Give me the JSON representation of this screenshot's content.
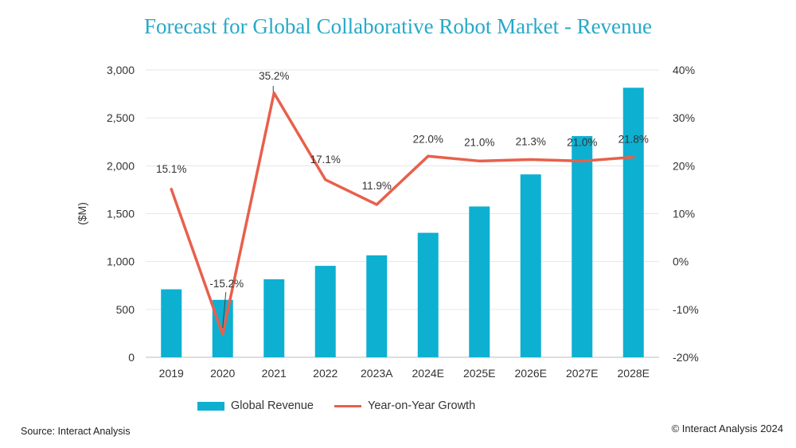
{
  "title": "Forecast for Global Collaborative Robot Market - Revenue",
  "source": "Source: Interact Analysis",
  "copyright": "© Interact Analysis 2024",
  "colors": {
    "bars": "#0db0d1",
    "line": "#e8604c",
    "title": "#27a9c9"
  },
  "chart_data": {
    "type": "bar",
    "categories": [
      "2019",
      "2020",
      "2021",
      "2022",
      "2023A",
      "2024E",
      "2025E",
      "2026E",
      "2027E",
      "2028E"
    ],
    "ylabel": "($M)",
    "ylim": [
      0,
      3000
    ],
    "y2lim": [
      -20,
      40
    ],
    "y_ticks": [
      "0",
      "500",
      "1,000",
      "1,500",
      "2,000",
      "2,500",
      "3,000"
    ],
    "y2_ticks": [
      "-20%",
      "-10%",
      "0%",
      "10%",
      "20%",
      "30%",
      "40%"
    ],
    "grid": true,
    "legend": "bottom",
    "series": [
      {
        "name": "Global Revenue",
        "type": "bar",
        "axis": "left",
        "values": [
          710,
          600,
          815,
          955,
          1065,
          1300,
          1575,
          1910,
          2310,
          2815
        ]
      },
      {
        "name": "Year-on-Year Growth",
        "type": "line",
        "axis": "right",
        "values": [
          15.1,
          -15.2,
          35.2,
          17.1,
          11.9,
          22.0,
          21.0,
          21.3,
          21.0,
          21.8
        ],
        "labels": [
          "15.1%",
          "-15.2%",
          "35.2%",
          "17.1%",
          "11.9%",
          "22.0%",
          "21.0%",
          "21.3%",
          "21.0%",
          "21.8%"
        ]
      }
    ]
  }
}
